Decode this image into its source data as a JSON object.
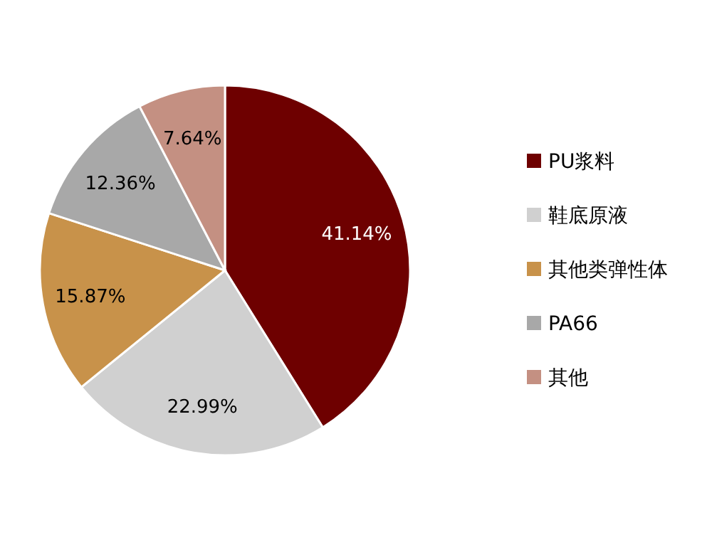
{
  "chart_data": {
    "type": "pie",
    "categories": [
      "PU浆料",
      "鞋底原液",
      "其他类弹性体",
      "PA66",
      "其他"
    ],
    "values": [
      41.14,
      22.99,
      15.87,
      12.36,
      7.64
    ],
    "value_labels": [
      "41.14%",
      "22.99%",
      "15.87%",
      "12.36%",
      "7.64%"
    ],
    "colors": [
      "#6e0000",
      "#d0d0d0",
      "#c8924a",
      "#a8a8a8",
      "#c49082"
    ],
    "legend": "right"
  }
}
